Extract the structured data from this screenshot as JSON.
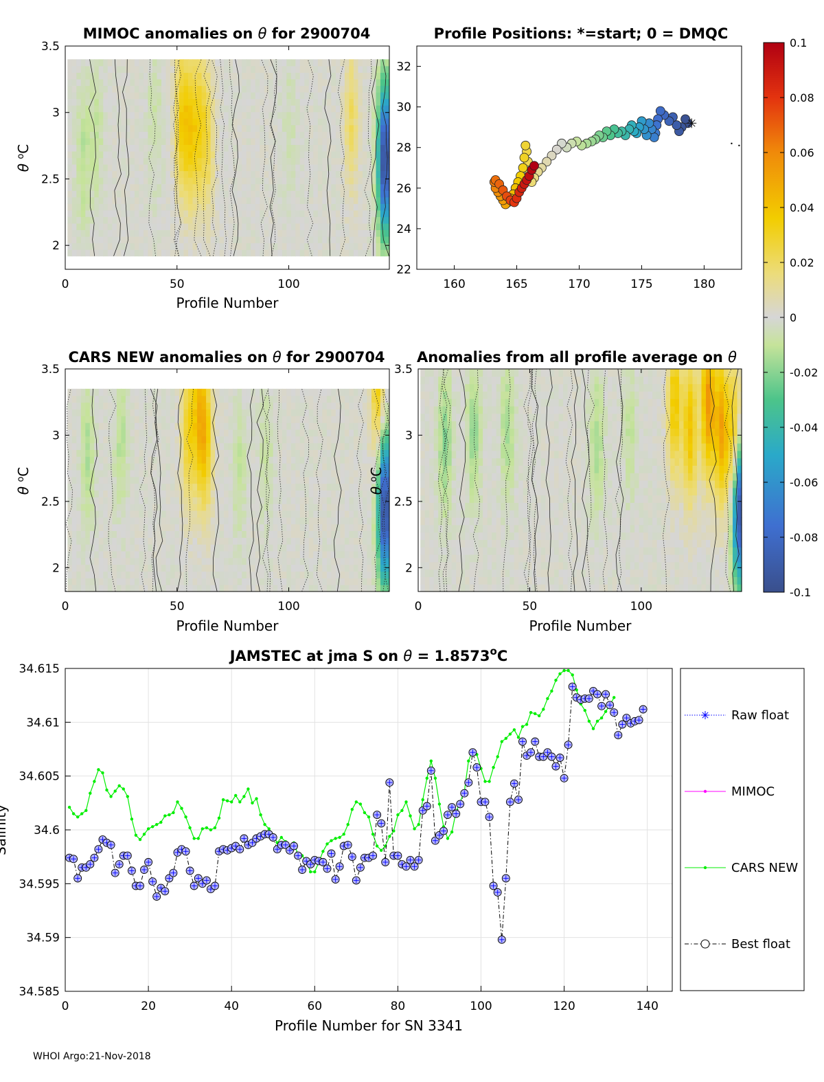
{
  "footer": "WHOI Argo:21-Nov-2018",
  "colors": {
    "raw": "#0000ff",
    "mimoc": "#ff00ff",
    "cars": "#00ee00",
    "best": "#000000",
    "marker_fill": "#b4b4ff",
    "anom_zero": "#d6d6d6"
  },
  "colorbar": {
    "ticks": [
      "0.1",
      "0.08",
      "0.06",
      "0.04",
      "0.02",
      "0",
      "-0.02",
      "-0.04",
      "-0.06",
      "-0.08",
      "-0.1"
    ],
    "range": [
      -0.1,
      0.1
    ]
  },
  "chart_data": [
    {
      "id": "mimoc",
      "type": "heatmap",
      "title": "MIMOC anomalies on",
      "title_symbol": "θ",
      "title_suffix": "for 2900704",
      "xlabel": "Profile Number",
      "ylabel_symbol": "θ",
      "ylabel_unit": "C",
      "xticks": [
        "0",
        "50",
        "100"
      ],
      "yticks": [
        "2",
        "2.5",
        "3",
        "3.5"
      ],
      "xlim": [
        0,
        145
      ],
      "ylim": [
        1.82,
        3.5
      ],
      "x_extent": [
        1,
        145
      ],
      "y_extent": [
        1.92,
        3.4
      ],
      "anomalies": [
        [
          8,
          0.0,
          -0.012
        ],
        [
          14,
          0.2,
          -0.01
        ],
        [
          52,
          0.3,
          0.032
        ],
        [
          56,
          0.2,
          0.028
        ],
        [
          60,
          0.25,
          0.025
        ],
        [
          64,
          0.15,
          0.02
        ],
        [
          40,
          0.3,
          -0.008
        ],
        [
          100,
          0.25,
          -0.006
        ],
        [
          128,
          0.3,
          0.02
        ],
        [
          143,
          0.0,
          -0.1
        ]
      ]
    },
    {
      "id": "positions",
      "type": "scatter",
      "title": "Profile Positions: *=start; 0 = DMQC",
      "xticks": [
        "160",
        "165",
        "170",
        "175",
        "180"
      ],
      "yticks": [
        "22",
        "24",
        "26",
        "28",
        "30",
        "32"
      ],
      "xlim": [
        157,
        183
      ],
      "ylim": [
        22,
        33
      ],
      "lon": [
        178.7,
        178.5,
        178.2,
        178.0,
        177.8,
        177.5,
        177.2,
        176.8,
        176.5,
        176.3,
        176.2,
        176.1,
        176.0,
        175.8,
        175.6,
        175.4,
        175.2,
        175.0,
        174.8,
        174.6,
        174.4,
        174.2,
        174.0,
        173.7,
        173.4,
        173.1,
        172.8,
        172.5,
        172.2,
        171.9,
        171.6,
        171.3,
        171.0,
        170.6,
        170.2,
        169.8,
        169.4,
        169.0,
        168.6,
        168.2,
        167.8,
        167.4,
        167.0,
        166.7,
        166.4,
        166.2,
        166.0,
        165.9,
        165.8,
        165.7,
        165.6,
        165.5,
        165.3,
        165.1,
        164.9,
        164.7,
        164.5,
        164.3,
        164.1,
        163.9,
        163.7,
        163.5,
        163.3,
        163.2,
        163.3,
        163.6,
        163.9,
        164.2,
        164.5,
        164.8,
        165.0,
        165.2,
        165.4,
        165.6,
        165.8,
        166.0,
        166.2,
        166.4
      ],
      "lat": [
        29.2,
        29.4,
        29.0,
        28.8,
        29.1,
        29.5,
        29.3,
        29.6,
        29.8,
        29.4,
        29.1,
        28.7,
        28.5,
        28.9,
        29.2,
        28.6,
        28.9,
        29.3,
        29.0,
        28.7,
        28.8,
        29.1,
        28.9,
        28.6,
        28.8,
        28.7,
        28.9,
        28.6,
        28.8,
        28.5,
        28.6,
        28.4,
        28.3,
        28.2,
        28.1,
        28.3,
        28.2,
        28.0,
        28.2,
        27.9,
        27.6,
        27.3,
        27.0,
        26.8,
        26.5,
        26.3,
        26.8,
        27.3,
        27.8,
        28.1,
        27.5,
        27.0,
        26.6,
        26.3,
        26.0,
        25.7,
        25.5,
        25.3,
        25.2,
        25.4,
        25.6,
        25.8,
        26.0,
        26.3,
        26.4,
        26.2,
        25.9,
        25.6,
        25.4,
        25.3,
        25.5,
        25.8,
        26.0,
        26.2,
        26.4,
        26.6,
        26.9,
        27.1
      ],
      "value_range": [
        -0.1,
        0.1
      ],
      "extra_points": [
        [
          182.2,
          28.2
        ],
        [
          182.8,
          28.1
        ]
      ]
    },
    {
      "id": "cars",
      "type": "heatmap",
      "title": "CARS NEW anomalies on",
      "title_symbol": "θ",
      "title_suffix": "for 2900704",
      "xlabel": "Profile Number",
      "ylabel_symbol": "θ",
      "ylabel_unit": "C",
      "xticks": [
        "0",
        "50",
        "100"
      ],
      "yticks": [
        "2",
        "2.5",
        "3",
        "3.5"
      ],
      "xlim": [
        0,
        145
      ],
      "ylim": [
        1.82,
        3.5
      ],
      "x_extent": [
        1,
        145
      ],
      "y_extent": [
        1.82,
        3.35
      ],
      "anomalies": [
        [
          10,
          0.2,
          -0.014
        ],
        [
          25,
          0.3,
          -0.012
        ],
        [
          55,
          0.4,
          0.03
        ],
        [
          60,
          0.5,
          0.035
        ],
        [
          63,
          0.3,
          0.03
        ],
        [
          78,
          0.1,
          -0.01
        ],
        [
          90,
          0.2,
          -0.008
        ],
        [
          140,
          0.7,
          0.035
        ],
        [
          143,
          -0.2,
          -0.1
        ]
      ]
    },
    {
      "id": "avg",
      "type": "heatmap",
      "title": "Anomalies from all profile average on",
      "title_symbol": "θ",
      "xlabel": "Profile Number",
      "ylabel_symbol": "θ",
      "ylabel_unit": "C",
      "xticks": [
        "0",
        "50",
        "100"
      ],
      "yticks": [
        "2",
        "2.5",
        "3",
        "3.5"
      ],
      "xlim": [
        0,
        145
      ],
      "ylim": [
        1.82,
        3.5
      ],
      "x_extent": [
        1,
        145
      ],
      "y_extent": [
        1.82,
        3.5
      ],
      "anomalies": [
        [
          12,
          0.3,
          -0.02
        ],
        [
          25,
          0.4,
          -0.018
        ],
        [
          40,
          0.4,
          -0.015
        ],
        [
          80,
          0.3,
          -0.015
        ],
        [
          95,
          0.4,
          -0.01
        ],
        [
          115,
          0.6,
          0.038
        ],
        [
          122,
          0.4,
          0.04
        ],
        [
          130,
          0.6,
          0.055
        ],
        [
          136,
          0.4,
          0.05
        ],
        [
          142,
          0.3,
          0.045
        ],
        [
          144,
          -0.2,
          -0.1
        ]
      ]
    },
    {
      "id": "salinity",
      "type": "line",
      "title": "JAMSTEC at jma S on",
      "title_symbol": "θ",
      "title_value": " = 1.8573",
      "title_sup": "o",
      "title_unit": "C",
      "xlabel": "Profile Number for SN 3341",
      "ylabel": "Salinity",
      "xticks": [
        "0",
        "20",
        "40",
        "60",
        "80",
        "100",
        "120",
        "140"
      ],
      "yticks": [
        "34.585",
        "34.59",
        "34.595",
        "34.6",
        "34.605",
        "34.61",
        "34.615"
      ],
      "xlim": [
        0,
        146
      ],
      "ylim": [
        34.585,
        34.615
      ],
      "series": [
        {
          "name": "Raw float",
          "values": [
            34.5974,
            34.5973,
            34.5955,
            34.5965,
            34.5965,
            34.5968,
            34.5974,
            34.5982,
            34.5991,
            34.5988,
            34.5986,
            34.596,
            34.5968,
            34.5976,
            34.5976,
            34.5962,
            34.5948,
            34.5948,
            34.5963,
            34.597,
            34.5952,
            34.5938,
            34.5946,
            34.5943,
            34.5955,
            34.596,
            34.5979,
            34.5982,
            34.598,
            34.5962,
            34.5948,
            34.5955,
            34.595,
            34.5953,
            34.5945,
            34.5948,
            34.598,
            34.5982,
            34.5981,
            34.5983,
            34.5985,
            34.5982,
            34.5992,
            34.5986,
            34.5988,
            34.5992,
            34.5994,
            34.5996,
            34.5996,
            34.5993,
            34.5982,
            34.5986,
            34.5986,
            34.5981,
            34.5985,
            34.5976,
            34.5963,
            34.5971,
            34.5968,
            34.5972,
            34.5971,
            34.597,
            34.5964,
            34.5978,
            34.5954,
            34.5966,
            34.5985,
            34.5986,
            34.5975,
            34.5953,
            34.5965,
            34.5974,
            34.5974,
            34.5976,
            34.6014,
            34.6006,
            34.597,
            34.6044,
            34.5976,
            34.5976,
            34.5968,
            34.5966,
            34.5972,
            34.5966,
            34.5972,
            34.6018,
            34.6022,
            34.6055,
            34.599,
            34.5995,
            34.5999,
            34.6014,
            34.6021,
            34.6015,
            34.6024,
            34.6034,
            34.6044,
            34.6072,
            34.6058,
            34.6026,
            34.6026,
            34.6012,
            34.5948,
            34.5942,
            34.5898,
            34.5955,
            34.6026,
            34.6043,
            34.6028,
            34.6082,
            34.6069,
            34.6072,
            34.6082,
            34.6068,
            34.6068,
            34.6072,
            34.6068,
            34.6059,
            34.6067,
            34.6048,
            34.6079,
            34.6133,
            34.6123,
            34.6121,
            34.6122,
            34.6122,
            34.6129,
            34.6126,
            34.6115,
            34.6126,
            34.6116,
            34.6109,
            34.6088,
            34.6098,
            34.6104,
            34.6099,
            34.6101,
            34.6102,
            34.6112
          ]
        },
        {
          "name": "MIMOC",
          "values": []
        },
        {
          "name": "CARS NEW",
          "values": [
            34.6021,
            34.6015,
            34.6012,
            34.6015,
            34.6018,
            34.6034,
            34.6045,
            34.6056,
            34.6053,
            34.6037,
            34.6031,
            34.6036,
            34.6041,
            34.6038,
            34.6031,
            34.601,
            34.5995,
            34.5991,
            34.5996,
            34.6001,
            34.6003,
            34.6005,
            34.6007,
            34.6013,
            34.6014,
            34.6016,
            34.6026,
            34.602,
            34.6012,
            34.6002,
            34.5992,
            34.5992,
            34.6001,
            34.6002,
            34.6,
            34.6002,
            34.6011,
            34.6028,
            34.6027,
            34.6026,
            34.6032,
            34.6026,
            34.6031,
            34.6038,
            34.6025,
            34.6029,
            34.6014,
            34.6005,
            34.6001,
            34.5995,
            34.5988,
            34.5993,
            34.5989,
            34.5984,
            34.5988,
            34.5977,
            34.5976,
            34.5971,
            34.5961,
            34.5961,
            34.597,
            34.598,
            34.5987,
            34.599,
            34.5992,
            34.5993,
            34.5996,
            34.6005,
            34.6019,
            34.6026,
            34.6024,
            34.6016,
            34.6012,
            34.5996,
            34.5985,
            34.5981,
            34.5985,
            34.5994,
            34.5999,
            34.6014,
            34.6018,
            34.6026,
            34.6013,
            34.6001,
            34.6005,
            34.6028,
            34.6048,
            34.6064,
            34.6048,
            34.6024,
            34.6003,
            34.5992,
            34.5998,
            34.6017,
            34.6026,
            34.6036,
            34.6064,
            34.6074,
            34.607,
            34.6057,
            34.6045,
            34.6045,
            34.6058,
            34.6068,
            34.6082,
            34.6085,
            34.6089,
            34.6093,
            34.6086,
            34.6096,
            34.6098,
            34.6109,
            34.6108,
            34.6106,
            34.6112,
            34.6122,
            34.6129,
            34.6139,
            34.6145,
            34.6148,
            34.6148,
            34.6144,
            34.613,
            34.6117,
            34.6111,
            34.6101,
            34.6094,
            34.6101,
            34.6104,
            34.611,
            34.6116,
            34.6123
          ]
        },
        {
          "name": "Best float",
          "values": [
            34.5974,
            34.5973,
            34.5955,
            34.5965,
            34.5965,
            34.5968,
            34.5974,
            34.5982,
            34.5991,
            34.5988,
            34.5986,
            34.596,
            34.5968,
            34.5976,
            34.5976,
            34.5962,
            34.5948,
            34.5948,
            34.5963,
            34.597,
            34.5952,
            34.5938,
            34.5946,
            34.5943,
            34.5955,
            34.596,
            34.5979,
            34.5982,
            34.598,
            34.5962,
            34.5948,
            34.5955,
            34.595,
            34.5953,
            34.5945,
            34.5948,
            34.598,
            34.5982,
            34.5981,
            34.5983,
            34.5985,
            34.5982,
            34.5992,
            34.5986,
            34.5988,
            34.5992,
            34.5994,
            34.5996,
            34.5996,
            34.5993,
            34.5982,
            34.5986,
            34.5986,
            34.5981,
            34.5985,
            34.5976,
            34.5963,
            34.5971,
            34.5968,
            34.5972,
            34.5971,
            34.597,
            34.5964,
            34.5978,
            34.5954,
            34.5966,
            34.5985,
            34.5986,
            34.5975,
            34.5953,
            34.5965,
            34.5974,
            34.5974,
            34.5976,
            34.6014,
            34.6006,
            34.597,
            34.6044,
            34.5976,
            34.5976,
            34.5968,
            34.5966,
            34.5972,
            34.5966,
            34.5972,
            34.6018,
            34.6022,
            34.6055,
            34.599,
            34.5995,
            34.5999,
            34.6014,
            34.6021,
            34.6015,
            34.6024,
            34.6034,
            34.6044,
            34.6072,
            34.6058,
            34.6026,
            34.6026,
            34.6012,
            34.5948,
            34.5942,
            34.5898,
            34.5955,
            34.6026,
            34.6043,
            34.6028,
            34.6082,
            34.6069,
            34.6072,
            34.6082,
            34.6068,
            34.6068,
            34.6072,
            34.6068,
            34.6059,
            34.6067,
            34.6048,
            34.6079,
            34.6133,
            34.6123,
            34.6121,
            34.6122,
            34.6122,
            34.6129,
            34.6126,
            34.6115,
            34.6126,
            34.6116,
            34.6109,
            34.6088,
            34.6098,
            34.6104,
            34.6099,
            34.6101,
            34.6102,
            34.6112
          ]
        }
      ]
    }
  ]
}
